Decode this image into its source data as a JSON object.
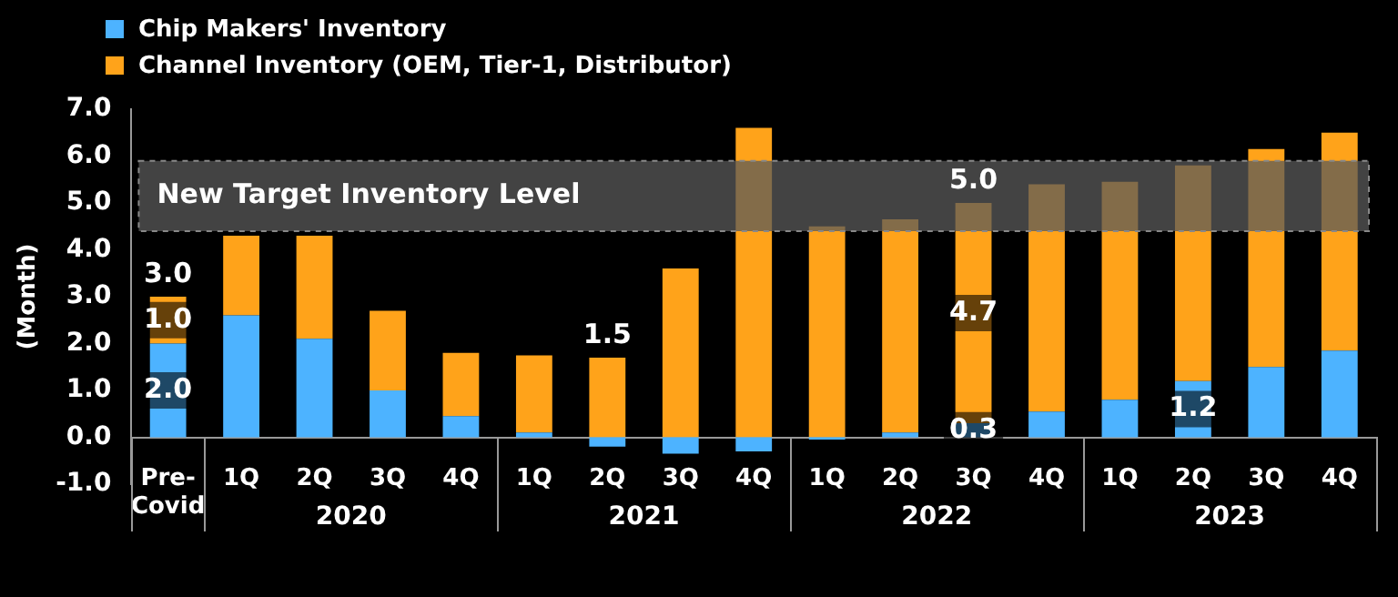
{
  "chart_data": {
    "type": "bar",
    "stacked": true,
    "ylabel": "(Month)",
    "categories": [
      "Pre-Covid",
      "1Q",
      "2Q",
      "3Q",
      "4Q",
      "1Q",
      "2Q",
      "3Q",
      "4Q",
      "1Q",
      "2Q",
      "3Q",
      "4Q",
      "1Q",
      "2Q",
      "3Q",
      "4Q"
    ],
    "series": [
      {
        "name": "Chip Makers' Inventory",
        "color": "#4db3ff",
        "values": [
          2.0,
          2.6,
          2.1,
          1.0,
          0.45,
          0.1,
          -0.2,
          -0.35,
          -0.3,
          -0.05,
          0.1,
          0.3,
          0.55,
          0.8,
          1.2,
          1.5,
          1.85
        ],
        "value_labels": [
          "2.0",
          null,
          null,
          null,
          null,
          null,
          null,
          null,
          null,
          null,
          null,
          "0.3",
          null,
          null,
          "1.2",
          null,
          null
        ]
      },
      {
        "name": "Channel Inventory (OEM, Tier-1, Distributor)",
        "color": "#ffa31a",
        "values": [
          1.0,
          1.7,
          2.2,
          1.7,
          1.35,
          1.65,
          1.7,
          3.6,
          6.6,
          4.5,
          4.55,
          4.7,
          4.85,
          4.65,
          4.6,
          4.65,
          4.65
        ],
        "value_labels": [
          "1.0",
          null,
          null,
          null,
          null,
          null,
          null,
          null,
          null,
          null,
          null,
          "4.7",
          null,
          null,
          null,
          null,
          null
        ]
      }
    ],
    "totals": [
      "3.0",
      null,
      null,
      null,
      null,
      null,
      "1.5",
      null,
      null,
      null,
      null,
      "5.0",
      null,
      null,
      null,
      null,
      null
    ],
    "bands": [
      {
        "axis": "y",
        "from": 4.4,
        "to": 5.9,
        "label": "New Target Inventory Level",
        "color": "#5a5a5a"
      }
    ],
    "annotations": [
      "2020",
      "2021",
      "2022",
      "2023"
    ],
    "ylim": [
      -1,
      7
    ],
    "yticks": [
      {
        "value": -1,
        "label": "-1.0"
      },
      {
        "value": 0,
        "label": "0.0"
      },
      {
        "value": 1,
        "label": "1.0"
      },
      {
        "value": 2,
        "label": "2.0"
      },
      {
        "value": 3,
        "label": "3.0"
      },
      {
        "value": 4,
        "label": "4.0"
      },
      {
        "value": 5,
        "label": "5.0"
      },
      {
        "value": 6,
        "label": "6.0"
      },
      {
        "value": 7,
        "label": "7.0"
      }
    ],
    "legend": "top left"
  }
}
